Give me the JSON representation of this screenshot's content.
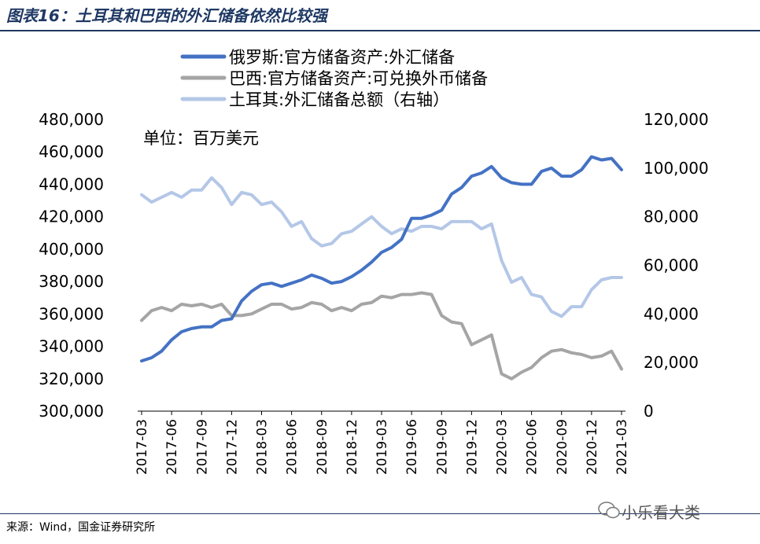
{
  "header": {
    "title": "图表16：土耳其和巴西的外汇储备依然比较强"
  },
  "footer": {
    "source": "来源：Wind，国金证券研究所",
    "watermark": "小乐看大类"
  },
  "chart_data": {
    "type": "line",
    "unit_label": "单位：百万美元",
    "y_left": {
      "min": 300000,
      "max": 480000,
      "ticks": [
        "300,000",
        "320,000",
        "340,000",
        "360,000",
        "380,000",
        "400,000",
        "420,000",
        "440,000",
        "460,000",
        "480,000"
      ]
    },
    "y_right": {
      "min": 0,
      "max": 120000,
      "ticks": [
        "0",
        "20,000",
        "40,000",
        "60,000",
        "80,000",
        "100,000",
        "120,000"
      ]
    },
    "x_ticks": [
      "2017-03",
      "2017-06",
      "2017-09",
      "2017-12",
      "2018-03",
      "2018-06",
      "2018-09",
      "2018-12",
      "2019-03",
      "2019-06",
      "2019-09",
      "2019-12",
      "2020-03",
      "2020-06",
      "2020-09",
      "2020-12",
      "2021-03"
    ],
    "x": [
      "2017-03",
      "2017-04",
      "2017-05",
      "2017-06",
      "2017-07",
      "2017-08",
      "2017-09",
      "2017-10",
      "2017-11",
      "2017-12",
      "2018-01",
      "2018-02",
      "2018-03",
      "2018-04",
      "2018-05",
      "2018-06",
      "2018-07",
      "2018-08",
      "2018-09",
      "2018-10",
      "2018-11",
      "2018-12",
      "2019-01",
      "2019-02",
      "2019-03",
      "2019-04",
      "2019-05",
      "2019-06",
      "2019-07",
      "2019-08",
      "2019-09",
      "2019-10",
      "2019-11",
      "2019-12",
      "2020-01",
      "2020-02",
      "2020-03",
      "2020-04",
      "2020-05",
      "2020-06",
      "2020-07",
      "2020-08",
      "2020-09",
      "2020-10",
      "2020-11",
      "2020-12",
      "2021-01",
      "2021-02",
      "2021-03"
    ],
    "series": [
      {
        "name": "俄罗斯:官方储备资产:外汇储备",
        "axis": "left",
        "color": "#4472c4",
        "width": 4,
        "values": [
          331000,
          333000,
          337000,
          344000,
          349000,
          351000,
          352000,
          352000,
          356000,
          357000,
          368000,
          374000,
          378000,
          379000,
          377000,
          379000,
          381000,
          384000,
          382000,
          379000,
          380000,
          383000,
          387000,
          392000,
          398000,
          401000,
          406000,
          419000,
          419000,
          421000,
          424000,
          434000,
          438000,
          445000,
          447000,
          451000,
          444000,
          441000,
          440000,
          440000,
          448000,
          450000,
          445000,
          445000,
          449000,
          457000,
          455000,
          456000,
          449000
        ]
      },
      {
        "name": "巴西:官方储备资产:可兑换外币储备",
        "axis": "left",
        "color": "#a5a5a5",
        "width": 4,
        "values": [
          356000,
          362000,
          364000,
          362000,
          366000,
          365000,
          366000,
          364000,
          366000,
          359000,
          359000,
          360000,
          363000,
          366000,
          366000,
          363000,
          364000,
          367000,
          366000,
          362000,
          364000,
          362000,
          366000,
          367000,
          371000,
          370000,
          372000,
          372000,
          373000,
          372000,
          359000,
          355000,
          354000,
          341000,
          344000,
          347000,
          323000,
          320000,
          324000,
          327000,
          333000,
          337000,
          338000,
          336000,
          335000,
          333000,
          334000,
          337000,
          326000
        ]
      },
      {
        "name": "土耳其:外汇储备总额（右轴）",
        "axis": "right",
        "color": "#b4c7e7",
        "width": 4,
        "values": [
          89000,
          86000,
          88000,
          90000,
          88000,
          91000,
          91000,
          96000,
          92000,
          85000,
          90000,
          89000,
          85000,
          86000,
          82000,
          76000,
          78000,
          71000,
          68000,
          69000,
          73000,
          74000,
          77000,
          80000,
          76000,
          73000,
          75000,
          74000,
          76000,
          76000,
          75000,
          78000,
          78000,
          78000,
          75000,
          77000,
          62000,
          53000,
          55000,
          48000,
          47000,
          41000,
          39000,
          43000,
          43000,
          50000,
          54000,
          55000,
          55000
        ]
      }
    ]
  }
}
